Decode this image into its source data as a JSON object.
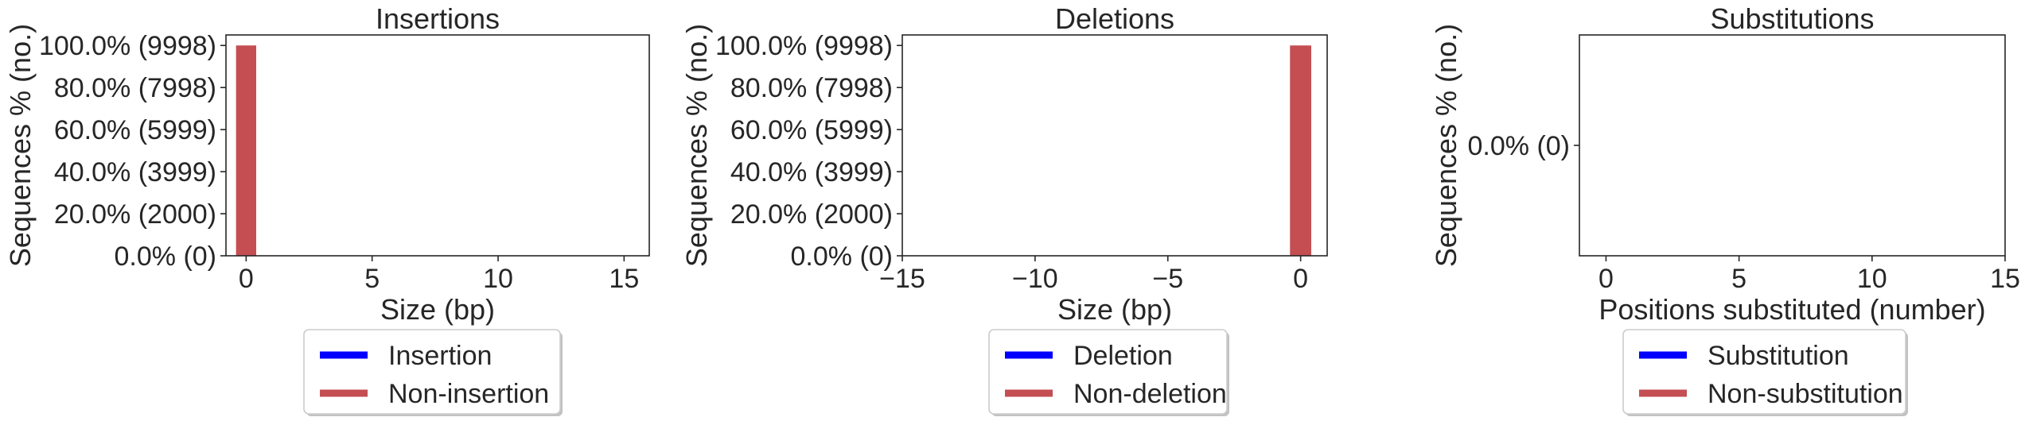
{
  "colors": {
    "event": "#0000ff",
    "non_event": "#c44e52",
    "axis": "#262626"
  },
  "chart_data": [
    {
      "type": "bar",
      "title": "Insertions",
      "xlabel": "Size (bp)",
      "ylabel": "Sequences % (no.)",
      "xlim": [
        -0.8,
        16
      ],
      "xticks": [
        0,
        5,
        10,
        15
      ],
      "xtick_labels": [
        "0",
        "5",
        "10",
        "15"
      ],
      "ylim": [
        0,
        10498
      ],
      "yticks": [
        0,
        2000,
        3999,
        5999,
        7998,
        9998
      ],
      "ytick_labels": [
        "0.0% (0)",
        "20.0% (2000)",
        "40.0% (3999)",
        "60.0% (5999)",
        "80.0% (7998)",
        "100.0% (9998)"
      ],
      "bars": [
        {
          "x": 0,
          "value": 9998,
          "series": "non_event"
        }
      ],
      "legend": {
        "placement": "below",
        "labels": [
          "Insertion",
          "Non-insertion"
        ]
      }
    },
    {
      "type": "bar",
      "title": "Deletions",
      "xlabel": "Size (bp)",
      "ylabel": "Sequences % (no.)",
      "xlim": [
        -15,
        1
      ],
      "xticks": [
        -15,
        -10,
        -5,
        0
      ],
      "xtick_labels": [
        "−15",
        "−10",
        "−5",
        "0"
      ],
      "ylim": [
        0,
        10498
      ],
      "yticks": [
        0,
        2000,
        3999,
        5999,
        7998,
        9998
      ],
      "ytick_labels": [
        "0.0% (0)",
        "20.0% (2000)",
        "40.0% (3999)",
        "60.0% (5999)",
        "80.0% (7998)",
        "100.0% (9998)"
      ],
      "bars": [
        {
          "x": 0,
          "value": 9998,
          "series": "non_event"
        }
      ],
      "legend": {
        "placement": "below",
        "labels": [
          "Deletion",
          "Non-deletion"
        ]
      }
    },
    {
      "type": "bar",
      "title": "Substitutions",
      "xlabel": "Positions substituted (number)",
      "ylabel": "Sequences % (no.)",
      "xlim": [
        -1,
        15
      ],
      "xticks": [
        0,
        5,
        10,
        15
      ],
      "xtick_labels": [
        "0",
        "5",
        "10",
        "15"
      ],
      "ylim": [
        -1,
        1
      ],
      "yticks": [
        0
      ],
      "ytick_labels": [
        "0.0% (0)"
      ],
      "bars": [],
      "legend": {
        "placement": "below",
        "labels": [
          "Substitution",
          "Non-substitution"
        ]
      }
    }
  ]
}
